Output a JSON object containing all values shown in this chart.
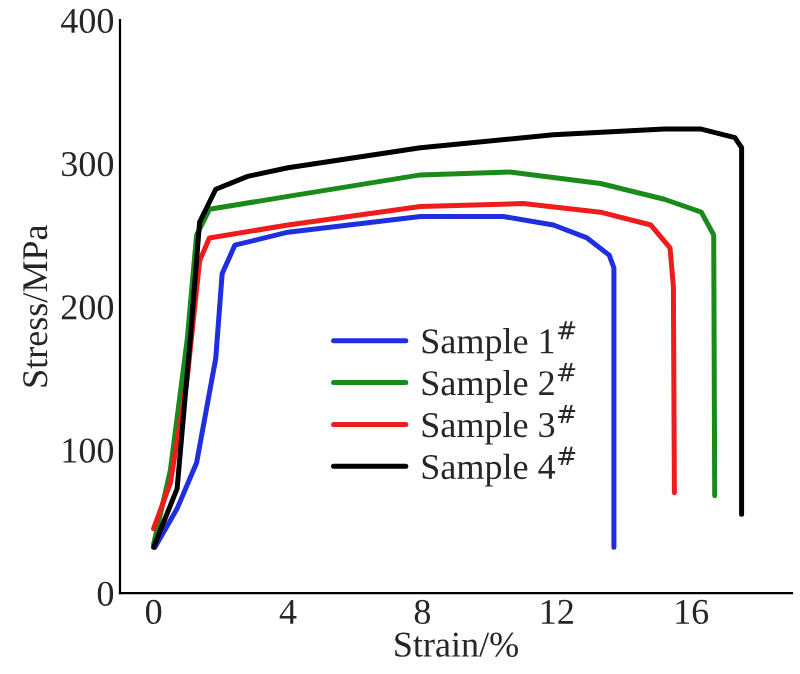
{
  "chart_data": {
    "type": "line",
    "xlabel": "Strain/%",
    "ylabel": "Stress/MPa",
    "xlim": [
      -1,
      19
    ],
    "xticks": [
      0,
      4,
      8,
      12,
      16
    ],
    "ylim": [
      0,
      400
    ],
    "yticks": [
      0,
      100,
      200,
      300,
      400
    ],
    "grid": false,
    "legend": "center",
    "marker": "none",
    "line_style": "solid",
    "series": [
      {
        "name": "Sample 1$^{#}$",
        "color": "#1f2fe0",
        "x": [
          0.04,
          0.7,
          1.28,
          1.85,
          2.04,
          2.42,
          4,
          7.94,
          10.4,
          11.9,
          12.9,
          13.56,
          13.7,
          13.7
        ],
        "values": [
          32,
          59,
          91,
          164,
          223,
          243,
          252,
          263,
          263,
          257,
          248,
          236,
          227,
          32
        ]
      },
      {
        "name": "Sample 2$^{#}$",
        "color": "#1a8a1a",
        "x": [
          0,
          0.5,
          1,
          1.28,
          1.66,
          4,
          7.94,
          10.6,
          13.3,
          15.2,
          16.3,
          16.67,
          16.7
        ],
        "values": [
          34,
          86,
          177,
          250,
          268,
          277,
          292,
          294,
          286,
          275,
          266,
          250,
          68
        ]
      },
      {
        "name": "Sample 3$^{#}$",
        "color": "#ee1c1c",
        "x": [
          0,
          0.5,
          1,
          1.37,
          1.66,
          4,
          7.94,
          11,
          13.3,
          14.8,
          15.37,
          15.47,
          15.5
        ],
        "values": [
          45,
          77,
          150,
          232,
          248,
          257,
          270,
          272,
          266,
          257,
          241,
          214,
          70
        ]
      },
      {
        "name": "Sample 4$^{#}$",
        "color": "#000000",
        "x": [
          0,
          0.7,
          1.09,
          1.37,
          1.85,
          2.8,
          4,
          7.94,
          11.9,
          15.2,
          16.3,
          17.3,
          17.5,
          17.5
        ],
        "values": [
          32,
          73,
          177,
          259,
          282,
          291,
          297,
          311,
          320,
          324,
          324,
          318,
          311,
          55
        ]
      }
    ]
  }
}
